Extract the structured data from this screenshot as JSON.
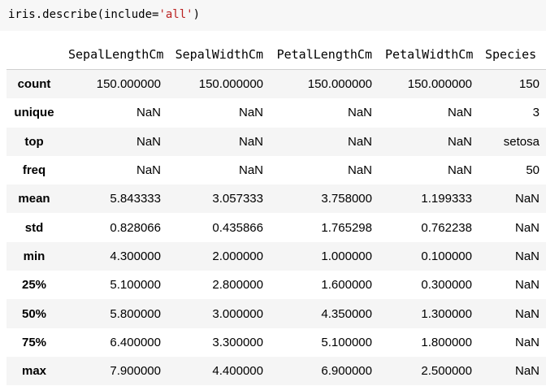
{
  "code_cell": {
    "prefix": "iris.describe(include=",
    "string_arg": "'all'",
    "suffix": ")"
  },
  "table": {
    "columns": [
      "SepalLengthCm",
      "SepalWidthCm",
      "PetalLengthCm",
      "PetalWidthCm",
      "Species"
    ],
    "rows": [
      {
        "label": "count",
        "values": [
          "150.000000",
          "150.000000",
          "150.000000",
          "150.000000",
          "150"
        ]
      },
      {
        "label": "unique",
        "values": [
          "NaN",
          "NaN",
          "NaN",
          "NaN",
          "3"
        ]
      },
      {
        "label": "top",
        "values": [
          "NaN",
          "NaN",
          "NaN",
          "NaN",
          "setosa"
        ]
      },
      {
        "label": "freq",
        "values": [
          "NaN",
          "NaN",
          "NaN",
          "NaN",
          "50"
        ]
      },
      {
        "label": "mean",
        "values": [
          "5.843333",
          "3.057333",
          "3.758000",
          "1.199333",
          "NaN"
        ]
      },
      {
        "label": "std",
        "values": [
          "0.828066",
          "0.435866",
          "1.765298",
          "0.762238",
          "NaN"
        ]
      },
      {
        "label": "min",
        "values": [
          "4.300000",
          "2.000000",
          "1.000000",
          "0.100000",
          "NaN"
        ]
      },
      {
        "label": "25%",
        "values": [
          "5.100000",
          "2.800000",
          "1.600000",
          "0.300000",
          "NaN"
        ]
      },
      {
        "label": "50%",
        "values": [
          "5.800000",
          "3.000000",
          "4.350000",
          "1.300000",
          "NaN"
        ]
      },
      {
        "label": "75%",
        "values": [
          "6.400000",
          "3.300000",
          "5.100000",
          "1.800000",
          "NaN"
        ]
      },
      {
        "label": "max",
        "values": [
          "7.900000",
          "4.400000",
          "6.900000",
          "2.500000",
          "NaN"
        ]
      }
    ]
  },
  "colors": {
    "code_background": "#f7f7f7",
    "string_literal": "#ba2121",
    "striped_row": "#f5f5f5"
  }
}
